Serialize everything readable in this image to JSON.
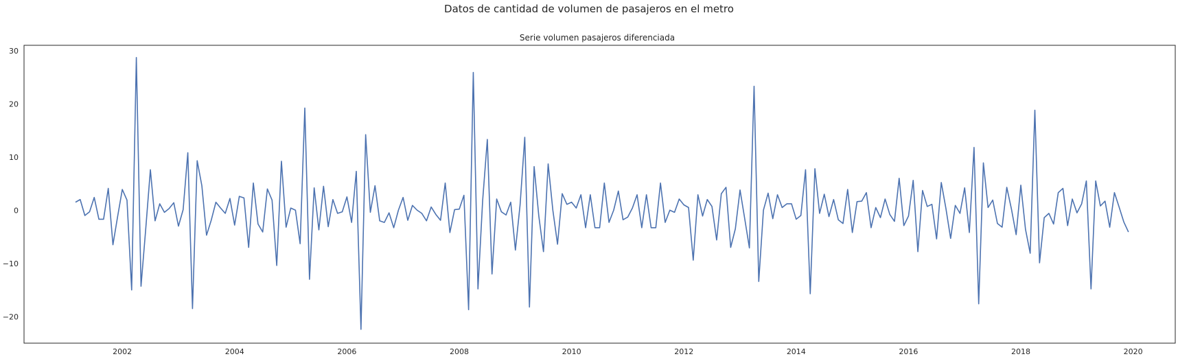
{
  "figure": {
    "suptitle": "Datos de cantidad de volumen de pasajeros en el metro"
  },
  "chart_data": {
    "type": "line",
    "title": "Serie volumen pasajeros diferenciada",
    "xlabel": "",
    "ylabel": "",
    "x_ticks": [
      "2002",
      "2004",
      "2006",
      "2008",
      "2010",
      "2012",
      "2014",
      "2016",
      "2018",
      "2020"
    ],
    "y_ticks": [
      -20,
      -10,
      0,
      10,
      20,
      30
    ],
    "xlim": [
      "2000-04",
      "2020-10"
    ],
    "ylim": [
      -25,
      31
    ],
    "grid": false,
    "line_color": "#4c72b0",
    "series": [
      {
        "start": "2001-03",
        "frequency": "monthly",
        "values": [
          1.5,
          2.0,
          -1.0,
          -0.3,
          2.4,
          -1.7,
          -1.7,
          4.1,
          -6.5,
          -1.2,
          3.9,
          1.9,
          -15.0,
          28.7,
          -14.3,
          -3.6,
          7.6,
          -2.0,
          1.2,
          -0.4,
          0.3,
          1.4,
          -3.0,
          0.1,
          10.8,
          -18.5,
          9.3,
          4.6,
          -4.7,
          -1.9,
          1.5,
          0.4,
          -0.6,
          2.2,
          -2.8,
          2.6,
          2.3,
          -7.0,
          5.1,
          -2.6,
          -4.1,
          4.0,
          1.9,
          -10.4,
          9.2,
          -3.2,
          0.4,
          0.0,
          -6.3,
          19.2,
          -13.0,
          4.2,
          -3.7,
          4.5,
          -3.1,
          2.0,
          -0.6,
          -0.3,
          2.5,
          -2.3,
          7.3,
          -22.4,
          14.2,
          -0.4,
          4.6,
          -2.0,
          -2.3,
          -0.5,
          -3.3,
          0.0,
          2.4,
          -1.9,
          0.9,
          0.0,
          -0.6,
          -2.0,
          0.6,
          -0.8,
          -1.9,
          5.1,
          -4.2,
          0.1,
          0.2,
          2.8,
          -18.7,
          25.9,
          -14.8,
          1.8,
          13.3,
          -12.0,
          2.1,
          -0.3,
          -0.9,
          1.5,
          -7.5,
          1.0,
          13.7,
          -18.2,
          8.2,
          -1.1,
          -7.8,
          8.7,
          0.0,
          -6.4,
          3.1,
          1.1,
          1.5,
          0.4,
          2.9,
          -3.3,
          2.9,
          -3.3,
          -3.3,
          5.1,
          -2.3,
          0.0,
          3.6,
          -1.8,
          -1.3,
          0.4,
          2.9,
          -3.3,
          2.9,
          -3.3,
          -3.3,
          5.1,
          -2.3,
          0.0,
          -0.4,
          2.1,
          1.0,
          0.5,
          -9.4,
          2.9,
          -1.1,
          2.0,
          0.7,
          -5.6,
          3.1,
          4.3,
          -7.0,
          -3.5,
          3.8,
          -1.6,
          -7.1,
          23.3,
          -13.4,
          0.0,
          3.2,
          -1.6,
          2.9,
          0.5,
          1.2,
          1.2,
          -1.7,
          -1.0,
          7.6,
          -15.7,
          7.8,
          -0.6,
          3.0,
          -1.2,
          2.0,
          -1.8,
          -2.5,
          3.9,
          -4.2,
          1.6,
          1.7,
          3.3,
          -3.3,
          0.5,
          -1.4,
          2.1,
          -0.8,
          -2.1,
          6.0,
          -2.9,
          -1.1,
          5.6,
          -7.8,
          3.7,
          0.7,
          1.1,
          -5.4,
          5.2,
          0.3,
          -5.3,
          0.9,
          -0.6,
          4.2,
          -4.2,
          11.8,
          -17.6,
          8.9,
          0.5,
          1.9,
          -2.5,
          -3.2,
          4.3,
          0.2,
          -4.6,
          4.7,
          -3.6,
          -8.1,
          18.8,
          -9.9,
          -1.4,
          -0.6,
          -2.6,
          3.3,
          4.1,
          -2.9,
          2.1,
          -0.5,
          1.2,
          5.5,
          -14.8,
          5.5,
          0.8,
          1.7,
          -3.2,
          3.3,
          0.6,
          -2.2,
          -4.1
        ]
      }
    ]
  }
}
